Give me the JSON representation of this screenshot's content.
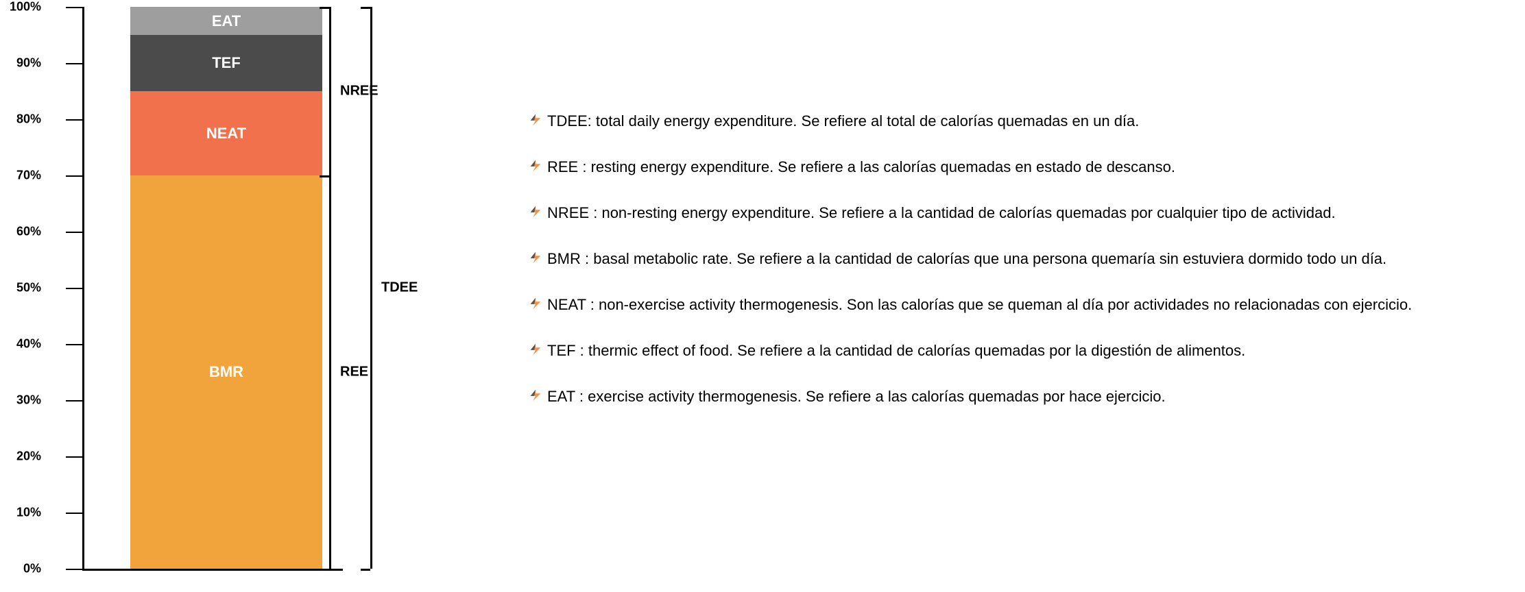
{
  "chart": {
    "type": "stacked-bar",
    "background_color": "#ffffff",
    "axis_color": "#000000",
    "tick_label_fontsize": 18,
    "tick_label_weight": 700,
    "segment_label_fontsize": 22,
    "segment_label_weight": 700,
    "segment_label_color": "#ffffff",
    "ylim": [
      0,
      100
    ],
    "ytick_labels": [
      "0%",
      "10%",
      "20%",
      "30%",
      "40%",
      "50%",
      "60%",
      "70%",
      "80%",
      "90%",
      "100%"
    ],
    "ytick_positions": [
      0,
      10,
      20,
      30,
      40,
      50,
      60,
      70,
      80,
      90,
      100
    ],
    "segments": [
      {
        "key": "bmr",
        "label": "BMR",
        "from": 0,
        "to": 70,
        "color": "#f1a43b"
      },
      {
        "key": "neat",
        "label": "NEAT",
        "from": 70,
        "to": 85,
        "color": "#f1714c"
      },
      {
        "key": "tef",
        "label": "TEF",
        "from": 85,
        "to": 95,
        "color": "#4b4b4b"
      },
      {
        "key": "eat",
        "label": "EAT",
        "from": 95,
        "to": 100,
        "color": "#9e9e9e"
      }
    ],
    "brackets": [
      {
        "key": "nree",
        "label": "NREE",
        "from": 70,
        "to": 100,
        "col": 0
      },
      {
        "key": "ree",
        "label": "REE",
        "from": 0,
        "to": 70,
        "col": 0
      },
      {
        "key": "tdee",
        "label": "TDEE",
        "from": 0,
        "to": 100,
        "col": 1
      }
    ],
    "bracket_label_fontsize": 20,
    "bracket_label_weight": 700
  },
  "bullet_colors": {
    "primary": "#f1924b",
    "shadow": "#4a4a4a"
  },
  "defs": [
    {
      "text": "TDEE: total daily energy expenditure. Se refiere al total de calorías quemadas en un día."
    },
    {
      "text": "REE :  resting energy expenditure. Se refiere a las calorías quemadas en estado de descanso."
    },
    {
      "text": "NREE :  non-resting energy expenditure. Se refiere a la cantidad de calorías quemadas por cualquier tipo de actividad."
    },
    {
      "text": " BMR : basal metabolic rate. Se refiere a la cantidad de calorías que una persona quemaría sin estuviera dormido todo un día."
    },
    {
      "text": "NEAT : non-exercise activity thermogenesis. Son las calorías que se queman al día por actividades no relacionadas con ejercicio."
    },
    {
      "text": "TEF : thermic effect of food. Se refiere a la cantidad de calorías quemadas por la digestión de alimentos."
    },
    {
      "text": "EAT :  exercise activity thermogenesis. Se refiere a las calorías quemadas por hace ejercicio."
    }
  ],
  "defs_fontsize": 22
}
